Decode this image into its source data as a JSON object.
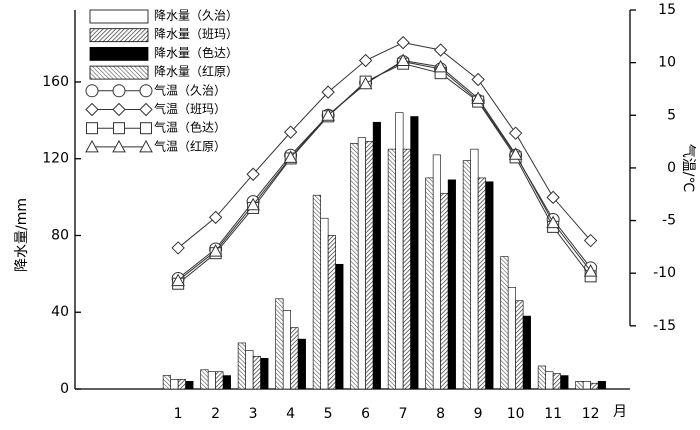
{
  "chart_data": {
    "type": "bar",
    "x": [
      1,
      2,
      3,
      4,
      5,
      6,
      7,
      8,
      9,
      10,
      11,
      12
    ],
    "xticks": [
      1,
      2,
      3,
      4,
      5,
      6,
      7,
      8,
      9,
      10,
      11,
      12
    ],
    "xlim": [
      -1.75,
      13.05
    ],
    "xlabel": "月",
    "ylabel": "降水量/mm",
    "y2label": "气温/℃",
    "ylim": [
      0,
      197.5
    ],
    "yticks": [
      0,
      40,
      80,
      120,
      160
    ],
    "y2lim": [
      -21,
      15
    ],
    "y2ticks": [
      -15,
      -10,
      -5,
      0,
      5,
      10,
      15
    ],
    "series": [
      {
        "name": "降水量（久治）",
        "type": "bar",
        "color": "#ffffff",
        "pattern": "solid",
        "values": [
          5,
          9,
          20,
          41,
          89,
          131,
          144,
          122,
          125,
          53,
          9,
          4
        ]
      },
      {
        "name": "降水量（班玛）",
        "type": "bar",
        "color": "#ffffff",
        "pattern": "hatch",
        "values": [
          5,
          9,
          17,
          32,
          80,
          129,
          125,
          102,
          110,
          46,
          8,
          3
        ]
      },
      {
        "name": "降水量（色达）",
        "type": "bar",
        "color": "#000000",
        "pattern": "solid",
        "values": [
          4,
          7,
          16,
          26,
          65,
          139,
          142,
          109,
          108,
          38,
          7,
          4
        ]
      },
      {
        "name": "降水量（红原）",
        "type": "bar",
        "color": "#ffffff",
        "pattern": "hatch2",
        "values": [
          7,
          10,
          24,
          47,
          101,
          128,
          125,
          110,
          119,
          69,
          12,
          4
        ]
      },
      {
        "name": "气温（久治）",
        "type": "line",
        "axis": "y2",
        "color": "#333333",
        "marker": "circle",
        "values": [
          -10.5,
          -7.7,
          -3.2,
          1.2,
          5.0,
          8.1,
          10.1,
          9.4,
          6.4,
          1.2,
          -4.9,
          -9.5
        ]
      },
      {
        "name": "气温（班玛）",
        "type": "line",
        "axis": "y2",
        "color": "#333333",
        "marker": "diamond",
        "values": [
          -7.6,
          -4.7,
          -0.6,
          3.4,
          7.2,
          10.2,
          11.9,
          11.2,
          8.4,
          3.3,
          -2.8,
          -6.9
        ]
      },
      {
        "name": "气温（色达）",
        "type": "line",
        "axis": "y2",
        "color": "#333333",
        "marker": "square",
        "values": [
          -11.0,
          -8.1,
          -3.8,
          0.9,
          4.9,
          8.2,
          9.9,
          9.0,
          6.3,
          1.0,
          -5.6,
          -10.3
        ]
      },
      {
        "name": "气温（红原）",
        "type": "line",
        "axis": "y2",
        "color": "#333333",
        "marker": "triangle",
        "values": [
          -10.7,
          -7.9,
          -3.5,
          1.0,
          5.0,
          8.0,
          10.2,
          9.6,
          6.6,
          1.3,
          -5.2,
          -9.8
        ]
      }
    ]
  }
}
